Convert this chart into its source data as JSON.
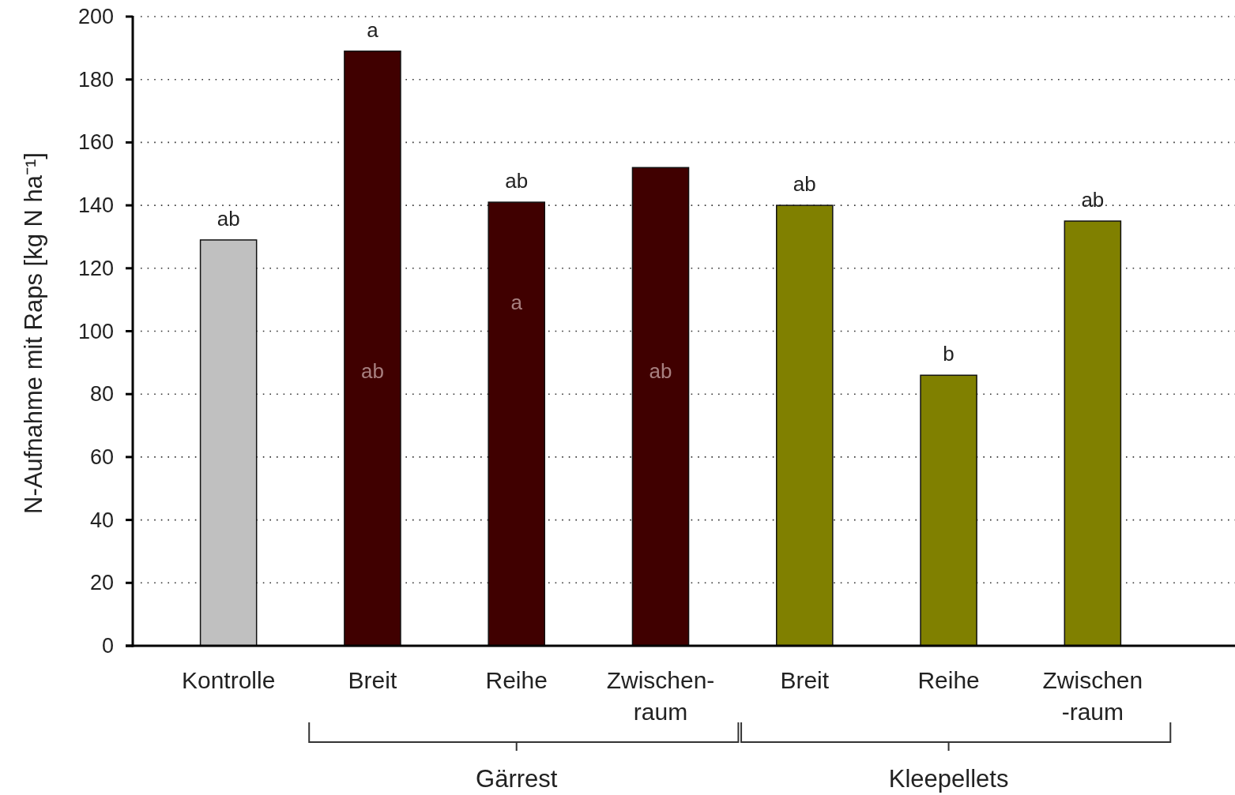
{
  "chart_data": {
    "type": "bar",
    "ylabel": "N-Aufnahme mit Raps [kg N ha⁻¹]",
    "categories": [
      "Kontrolle",
      "Breit",
      "Reihe",
      "Zwischen-\nraum",
      "Breit",
      "Reihe",
      "Zwischen\n-raum"
    ],
    "values": [
      129,
      189,
      141,
      152,
      140,
      86,
      135
    ],
    "colors": [
      "#c0c0c0",
      "#400000",
      "#400000",
      "#400000",
      "#808000",
      "#808000",
      "#808000"
    ],
    "value_labels": [
      "ab",
      "a",
      "ab",
      null,
      "ab",
      "b",
      "ab"
    ],
    "ylim": [
      0,
      200
    ],
    "yticks": [
      0,
      20,
      40,
      60,
      80,
      100,
      120,
      140,
      160,
      180,
      200
    ],
    "grid": "y",
    "annotations": [
      "Gärrest",
      "Kleepellets",
      "ab",
      "a",
      "ab"
    ]
  }
}
